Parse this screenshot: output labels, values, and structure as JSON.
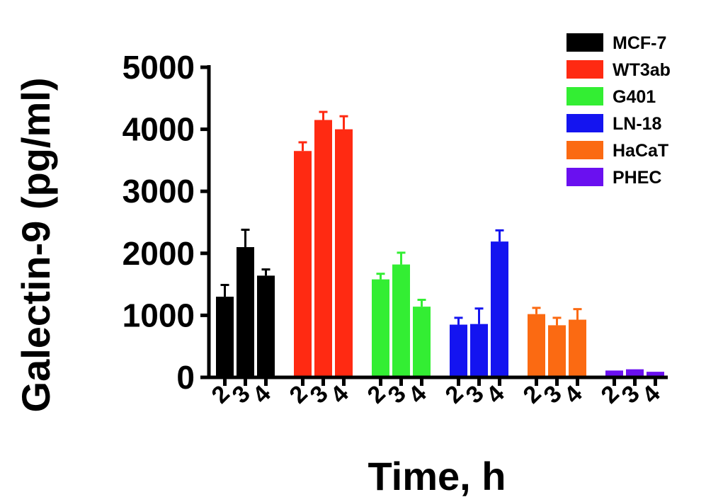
{
  "chart_data": {
    "type": "bar",
    "title": "",
    "xlabel": "Time, h",
    "ylabel": "Galectin-9 (pg/ml)",
    "ylim": [
      0,
      5000
    ],
    "yticks": [
      "0",
      "1000",
      "2000",
      "3000",
      "4000",
      "5000"
    ],
    "categories": [
      "2",
      "3",
      "4"
    ],
    "legend_position": "top-right",
    "grid": false,
    "series": [
      {
        "name": "MCF-7",
        "color": "#000000",
        "values": [
          1300,
          2100,
          1640
        ],
        "errors": [
          190,
          280,
          100
        ]
      },
      {
        "name": "WT3ab",
        "color": "#ff2a12",
        "values": [
          3650,
          4150,
          4000
        ],
        "errors": [
          140,
          130,
          210
        ]
      },
      {
        "name": "G401",
        "color": "#33ee33",
        "values": [
          1580,
          1820,
          1140
        ],
        "errors": [
          90,
          190,
          110
        ]
      },
      {
        "name": "LN-18",
        "color": "#1414f0",
        "values": [
          850,
          860,
          2190
        ],
        "errors": [
          110,
          250,
          180
        ]
      },
      {
        "name": "HaCaT",
        "color": "#fb6a12",
        "values": [
          1020,
          840,
          930
        ],
        "errors": [
          100,
          120,
          170
        ]
      },
      {
        "name": "PHEC",
        "color": "#6a10f0",
        "values": [
          110,
          130,
          90
        ],
        "errors": [
          0,
          0,
          0
        ]
      }
    ]
  }
}
